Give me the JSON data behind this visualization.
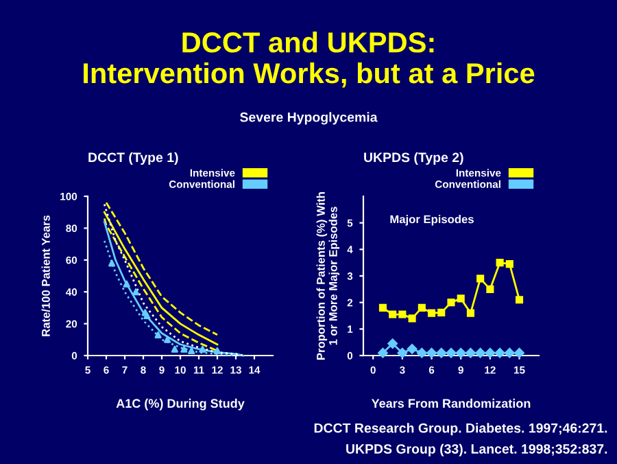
{
  "chart_data": [
    {
      "type": "line",
      "title": "DCCT (Type 1)",
      "xlabel": "A1C (%) During Study",
      "ylabel": "Rate/100 Patient Years",
      "xlim": [
        5,
        15
      ],
      "ylim": [
        0,
        100
      ],
      "xticks": [
        5,
        6,
        7,
        8,
        9,
        10,
        11,
        12,
        13,
        14
      ],
      "yticks": [
        0,
        20,
        40,
        60,
        80,
        100
      ],
      "grid": false,
      "legend": "top right",
      "marker": "none",
      "annotations": [
        "DCCT and UKPDS:\nIntervention Works, but at a Price",
        "Severe Hypoglycemia"
      ],
      "series": [
        {
          "name": "Intensive",
          "color": "#ffff00",
          "line_style": "solid",
          "x": [
            5.9,
            6,
            7,
            8,
            9,
            10,
            11,
            12
          ],
          "values": [
            90,
            88,
            67,
            48,
            30,
            20,
            13,
            7
          ]
        },
        {
          "color": "#ffff00",
          "line_style": "dashed",
          "x": [
            5.9,
            6,
            7,
            8,
            9,
            10,
            11,
            12
          ],
          "values": [
            86,
            82,
            62,
            42,
            24,
            14,
            8,
            3
          ]
        },
        {
          "color": "#ffff00",
          "line_style": "dashed",
          "x": [
            6,
            7,
            8,
            9,
            10,
            11,
            12
          ],
          "values": [
            96,
            77,
            55,
            37,
            27,
            19,
            13
          ]
        },
        {
          "name": "Conventional",
          "color": "#66ccff",
          "line_style": "solid",
          "x": [
            5.9,
            6.5,
            7,
            8,
            9,
            10,
            11,
            12,
            13,
            13.4
          ],
          "values": [
            84,
            60,
            47,
            27,
            14,
            7,
            4,
            2,
            1,
            0
          ]
        },
        {
          "color": "#66ccff",
          "line_style": "dotted",
          "x": [
            5.9,
            6.5,
            7,
            8,
            9,
            10,
            11,
            12,
            13
          ],
          "values": [
            72,
            52,
            40,
            22,
            10,
            5,
            2,
            1,
            0
          ]
        },
        {
          "color": "#ffffff",
          "line_style": "dotted",
          "x": [
            5.9,
            6.5,
            7,
            8,
            9,
            10,
            11,
            12,
            13,
            13.4
          ],
          "values": [
            95,
            72,
            60,
            33,
            18,
            9,
            5,
            2,
            1,
            0
          ]
        },
        {
          "type": "scatter",
          "color": "#66ccff",
          "marker": "triangle",
          "x": [
            6.3,
            7.1,
            7.6,
            8.1,
            8.2,
            8.8,
            9.3,
            9.7,
            10.2,
            10.6,
            11.2,
            12
          ],
          "values": [
            58,
            45,
            40,
            27,
            25,
            13,
            10,
            4,
            4,
            3,
            4,
            3
          ]
        }
      ]
    },
    {
      "type": "line",
      "title": "UKPDS (Type 2)",
      "xlabel": "Years From Randomization",
      "ylabel": "Proportion of Patients (%) With\n1 or More Major Episodes",
      "xlim": [
        -1,
        17
      ],
      "ylim": [
        0,
        6
      ],
      "xticks": [
        0,
        3,
        6,
        9,
        12,
        15
      ],
      "yticks": [
        0,
        1,
        2,
        3,
        4,
        5
      ],
      "grid": false,
      "legend": "top right",
      "annotations": [
        "Major Episodes",
        "DCCT Research Group. Diabetes. 1997;46:271.",
        "UKPDS Group (33). Lancet. 1998;352:837."
      ],
      "series": [
        {
          "name": "Intensive",
          "color": "#ffff00",
          "marker": "square",
          "x": [
            1,
            2,
            3,
            4,
            5,
            6,
            7,
            8,
            9,
            10,
            11,
            12,
            13,
            14,
            15
          ],
          "values": [
            1.8,
            1.55,
            1.55,
            1.4,
            1.8,
            1.6,
            1.62,
            2.0,
            2.15,
            1.6,
            2.9,
            2.5,
            3.5,
            3.45,
            2.1
          ]
        },
        {
          "name": "Conventional",
          "color": "#66ccff",
          "marker": "diamond",
          "x": [
            1,
            2,
            3,
            4,
            5,
            6,
            7,
            8,
            9,
            10,
            11,
            12,
            13,
            14,
            15
          ],
          "values": [
            0.1,
            0.45,
            0.1,
            0.25,
            0.1,
            0.1,
            0.1,
            0.1,
            0.1,
            0.1,
            0.1,
            0.1,
            0.1,
            0.1,
            0.1
          ]
        }
      ]
    }
  ]
}
